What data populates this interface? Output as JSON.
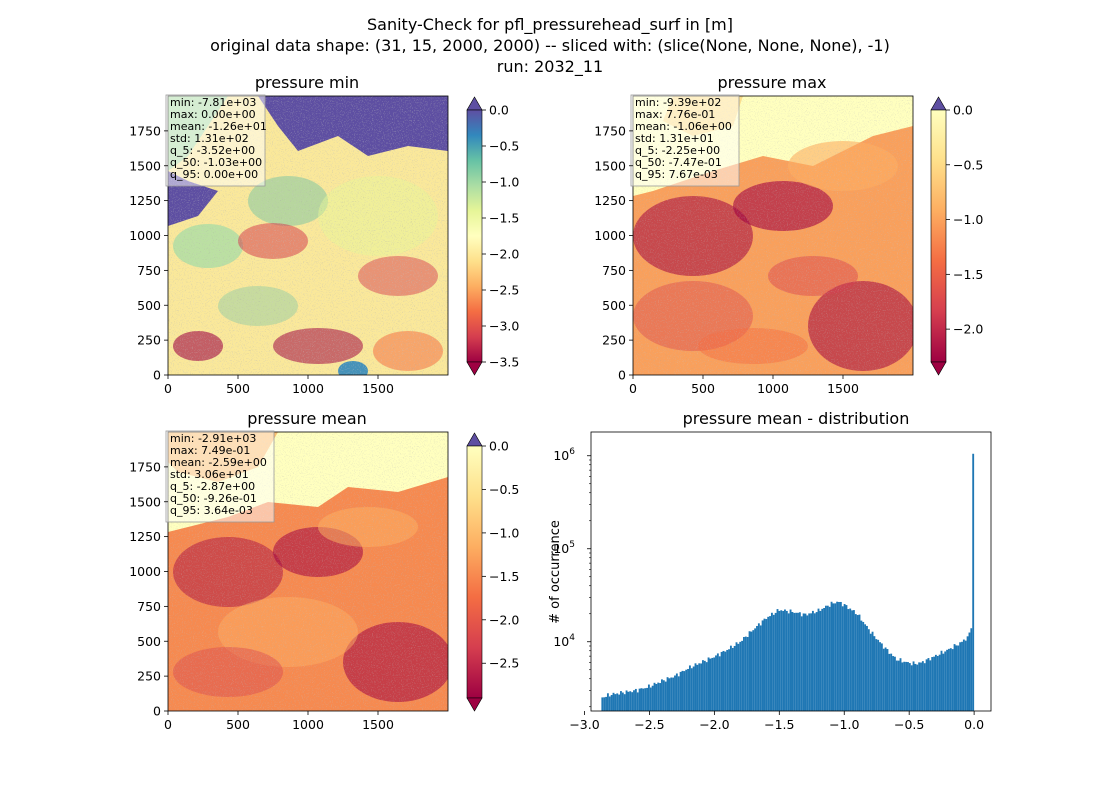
{
  "title_lines": [
    "Sanity-Check for pfl_pressurehead_surf in [m]",
    "original data shape: (31, 15, 2000, 2000) -- sliced with: (slice(None, None, None), -1)",
    "run: 2032_11"
  ],
  "chart_data": [
    {
      "type": "heatmap",
      "title": "pressure min",
      "x_ticks": [
        "0",
        "500",
        "1000",
        "1500"
      ],
      "y_ticks": [
        "0",
        "250",
        "500",
        "750",
        "1000",
        "1250",
        "1500",
        "1750"
      ],
      "xlim": [
        0,
        2000
      ],
      "ylim": [
        0,
        2000
      ],
      "colormap": "Spectral",
      "colorbar": {
        "range": [
          -3.5,
          0.0
        ],
        "ticks": [
          "0.0",
          "−0.5",
          "−1.0",
          "−1.5",
          "−2.0",
          "−2.5",
          "−3.0",
          "−3.5"
        ],
        "tick_values": [
          0.0,
          -0.5,
          -1.0,
          -1.5,
          -2.0,
          -2.5,
          -3.0,
          -3.5
        ],
        "extend": "both",
        "over_color": "#5e4fa2",
        "under_color": "#9e0142"
      },
      "stats": [
        "min: -7.81e+03",
        "max: 0.00e+00",
        "mean: -1.26e+01",
        "std: 1.31e+02",
        "q_5: -3.52e+00",
        "q_50: -1.03e+00",
        "q_95: 0.00e+00"
      ]
    },
    {
      "type": "heatmap",
      "title": "pressure max",
      "x_ticks": [
        "0",
        "500",
        "1000",
        "1500"
      ],
      "y_ticks": [
        "0",
        "250",
        "500",
        "750",
        "1000",
        "1250",
        "1500",
        "1750"
      ],
      "xlim": [
        0,
        2000
      ],
      "ylim": [
        0,
        2000
      ],
      "colormap": "Spectral",
      "colorbar": {
        "range": [
          -2.3,
          0.0
        ],
        "ticks": [
          "0.0",
          "−0.5",
          "−1.0",
          "−1.5",
          "−2.0"
        ],
        "tick_values": [
          0.0,
          -0.5,
          -1.0,
          -1.5,
          -2.0
        ],
        "extend": "both",
        "over_color": "#5e4fa2",
        "under_color": "#9e0142"
      },
      "stats": [
        "min: -9.39e+02",
        "max: 7.76e-01",
        "mean: -1.06e+00",
        "std: 1.31e+01",
        "q_5: -2.25e+00",
        "q_50: -7.47e-01",
        "q_95: 7.67e-03"
      ]
    },
    {
      "type": "heatmap",
      "title": "pressure mean",
      "x_ticks": [
        "0",
        "500",
        "1000",
        "1500"
      ],
      "y_ticks": [
        "0",
        "250",
        "500",
        "750",
        "1000",
        "1250",
        "1500",
        "1750"
      ],
      "xlim": [
        0,
        2000
      ],
      "ylim": [
        0,
        2000
      ],
      "colormap": "Spectral",
      "colorbar": {
        "range": [
          -2.9,
          0.0
        ],
        "ticks": [
          "0.0",
          "−0.5",
          "−1.0",
          "−1.5",
          "−2.0",
          "−2.5"
        ],
        "tick_values": [
          0.0,
          -0.5,
          -1.0,
          -1.5,
          -2.0,
          -2.5
        ],
        "extend": "both",
        "over_color": "#5e4fa2",
        "under_color": "#9e0142"
      },
      "stats": [
        "min: -2.91e+03",
        "max: 7.49e-01",
        "mean: -2.59e+00",
        "std: 3.06e+01",
        "q_5: -2.87e+00",
        "q_50: -9.26e-01",
        "q_95: 3.64e-03"
      ]
    },
    {
      "type": "bar",
      "title": "pressure mean - distribution",
      "xlabel": "",
      "ylabel": "# of occurrence",
      "y_scale": "log",
      "xlim": [
        -2.95,
        0.13
      ],
      "ylim": [
        1800,
        1800000
      ],
      "x_ticks": [
        -3.0,
        -2.5,
        -2.0,
        -1.5,
        -1.0,
        -0.5,
        0.0
      ],
      "x_tick_labels": [
        "−3.0",
        "−2.5",
        "−2.0",
        "−1.5",
        "−1.0",
        "−0.5",
        "0.0"
      ],
      "y_ticks": [
        {
          "base": "10",
          "exp": "4",
          "value": 10000
        },
        {
          "base": "10",
          "exp": "5",
          "value": 100000
        },
        {
          "base": "10",
          "exp": "6",
          "value": 1000000
        }
      ],
      "bar_color": "#1f77b4",
      "bins": {
        "start": -2.87,
        "end": 0.0,
        "count": 200
      },
      "anchors": [
        [
          -2.87,
          2500
        ],
        [
          -2.8,
          2700
        ],
        [
          -2.7,
          2850
        ],
        [
          -2.6,
          3000
        ],
        [
          -2.5,
          3300
        ],
        [
          -2.4,
          3800
        ],
        [
          -2.3,
          4300
        ],
        [
          -2.2,
          5200
        ],
        [
          -2.1,
          6000
        ],
        [
          -2.0,
          6900
        ],
        [
          -1.9,
          8200
        ],
        [
          -1.8,
          10000
        ],
        [
          -1.7,
          13500
        ],
        [
          -1.6,
          18000
        ],
        [
          -1.5,
          22000
        ],
        [
          -1.4,
          21000
        ],
        [
          -1.3,
          19500
        ],
        [
          -1.2,
          21500
        ],
        [
          -1.1,
          25500
        ],
        [
          -1.05,
          27000
        ],
        [
          -1.0,
          25000
        ],
        [
          -0.9,
          20000
        ],
        [
          -0.8,
          13000
        ],
        [
          -0.7,
          9000
        ],
        [
          -0.6,
          6500
        ],
        [
          -0.5,
          5900
        ],
        [
          -0.45,
          5800
        ],
        [
          -0.4,
          6000
        ],
        [
          -0.3,
          7000
        ],
        [
          -0.2,
          8200
        ],
        [
          -0.1,
          9800
        ],
        [
          -0.04,
          11500
        ],
        [
          -0.02,
          15000
        ],
        [
          -0.01,
          20000
        ],
        [
          0.0,
          1050000
        ]
      ]
    }
  ]
}
